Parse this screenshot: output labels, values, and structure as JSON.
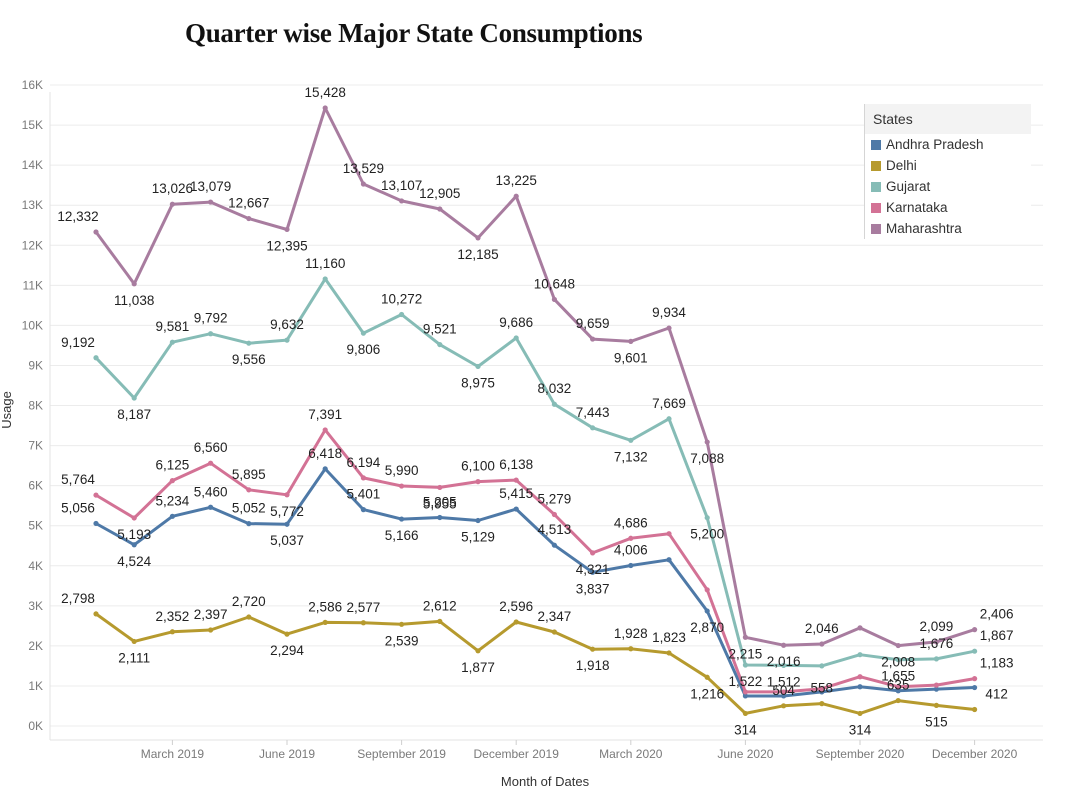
{
  "chart_data": {
    "type": "line",
    "title": "Quarter wise Major State Consumptions",
    "xlabel": "Month of Dates",
    "ylabel": "Usage",
    "ylim": [
      0,
      16000
    ],
    "yticks": [
      "0K",
      "1K",
      "2K",
      "3K",
      "4K",
      "5K",
      "6K",
      "7K",
      "8K",
      "9K",
      "10K",
      "11K",
      "12K",
      "13K",
      "14K",
      "15K",
      "16K"
    ],
    "x_tick_labels": [
      "March 2019",
      "June 2019",
      "September 2019",
      "December 2019",
      "March 2020",
      "June 2020",
      "September 2020",
      "December 2020"
    ],
    "x": [
      "2019-01",
      "2019-02",
      "2019-03",
      "2019-04",
      "2019-05",
      "2019-06",
      "2019-07",
      "2019-08",
      "2019-09",
      "2019-10",
      "2019-11",
      "2019-12",
      "2020-01",
      "2020-02",
      "2020-03",
      "2020-04",
      "2020-05",
      "2020-06",
      "2020-07",
      "2020-08",
      "2020-09",
      "2020-10",
      "2020-11",
      "2020-12"
    ],
    "grid": true,
    "legend_position": "top-right",
    "legend_title": "States",
    "series": [
      {
        "name": "Andhra Pradesh",
        "color": "#4e79a7",
        "values": [
          5056,
          4524,
          5234,
          5460,
          5052,
          5037,
          6418,
          5401,
          5166,
          5205,
          5129,
          5415,
          4513,
          3837,
          4006,
          4150,
          2870,
          750,
          750,
          850,
          980,
          880,
          920,
          960
        ],
        "labels": [
          "5,056",
          "4,524",
          "5,234",
          "5,460",
          "5,052",
          "5,037",
          "6,418",
          "5,401",
          "5,166",
          "5,205",
          "5,129",
          "5,415",
          "4,513",
          "3,837",
          "4,006",
          "",
          "2,870",
          "",
          "",
          "",
          "",
          "",
          "",
          ""
        ]
      },
      {
        "name": "Delhi",
        "color": "#b69a2e",
        "values": [
          2798,
          2111,
          2352,
          2397,
          2720,
          2294,
          2586,
          2577,
          2539,
          2612,
          1877,
          2596,
          2347,
          1918,
          1928,
          1823,
          1216,
          314,
          504,
          558,
          314,
          635,
          515,
          412
        ],
        "labels": [
          "2,798",
          "2,111",
          "2,352",
          "2,397",
          "2,720",
          "2,294",
          "2,586",
          "2,577",
          "2,539",
          "2,612",
          "1,877",
          "2,596",
          "2,347",
          "1,918",
          "1,928",
          "1,823",
          "1,216",
          "314",
          "504",
          "558",
          "314",
          "635",
          "515",
          "412"
        ]
      },
      {
        "name": "Gujarat",
        "color": "#86bcb6",
        "values": [
          9192,
          8187,
          9581,
          9792,
          9556,
          9632,
          11160,
          9806,
          10272,
          9521,
          8975,
          9686,
          8032,
          7443,
          7132,
          7669,
          5200,
          1522,
          1512,
          1500,
          1780,
          1655,
          1676,
          1867
        ],
        "labels": [
          "9,192",
          "8,187",
          "9,581",
          "9,792",
          "9,556",
          "9,632",
          "11,160",
          "9,806",
          "10,272",
          "9,521",
          "8,975",
          "9,686",
          "8,032",
          "7,443",
          "7,132",
          "7,669",
          "5,200",
          "1,522",
          "1,512",
          "",
          "",
          "1,655",
          "1,676",
          "1,867"
        ]
      },
      {
        "name": "Karnataka",
        "color": "#d37295",
        "values": [
          5764,
          5193,
          6125,
          6560,
          5895,
          5772,
          7391,
          6194,
          5990,
          5955,
          6100,
          6138,
          5279,
          4321,
          4686,
          4800,
          3400,
          850,
          850,
          930,
          1230,
          980,
          1020,
          1183
        ],
        "labels": [
          "5,764",
          "5,193",
          "6,125",
          "6,560",
          "5,895",
          "5,772",
          "7,391",
          "6,194",
          "5,990",
          "5,955",
          "6,100",
          "6,138",
          "5,279",
          "4,321",
          "4,686",
          "",
          "",
          "",
          "",
          "",
          "",
          "",
          "",
          "1,183"
        ]
      },
      {
        "name": "Maharashtra",
        "color": "#a87c9f",
        "values": [
          12332,
          11038,
          13026,
          13079,
          12667,
          12395,
          15428,
          13529,
          13107,
          12905,
          12185,
          13225,
          10648,
          9659,
          9601,
          9934,
          7088,
          2215,
          2016,
          2046,
          2450,
          2008,
          2099,
          2406
        ],
        "labels": [
          "12,332",
          "11,038",
          "13,026",
          "13,079",
          "12,667",
          "12,395",
          "15,428",
          "13,529",
          "13,107",
          "12,905",
          "12,185",
          "13,225",
          "10,648",
          "9,659",
          "9,601",
          "9,934",
          "7,088",
          "2,215",
          "2,016",
          "2,046",
          "",
          "2,008",
          "2,099",
          "2,406"
        ]
      }
    ]
  }
}
